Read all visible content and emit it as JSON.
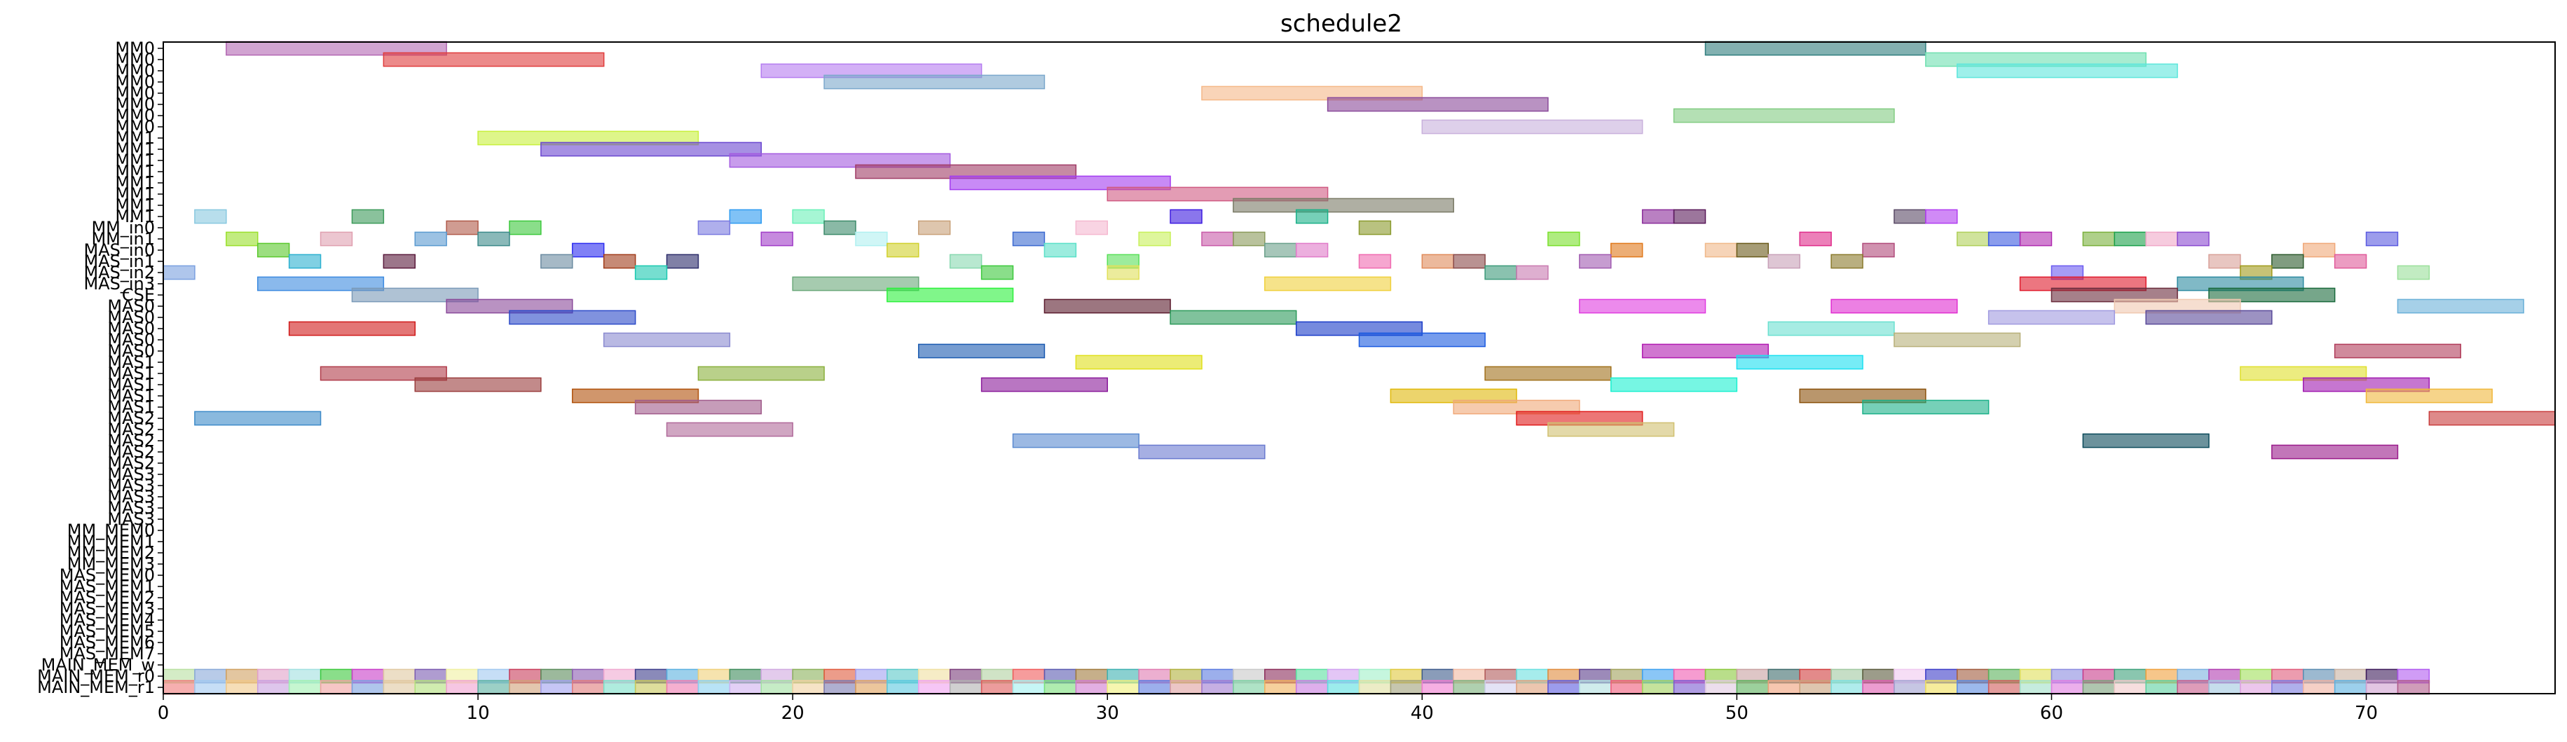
{
  "chart_data": {
    "type": "gantt",
    "title": "schedule2",
    "xlabel": "",
    "ylabel": "",
    "xlim": [
      0,
      76
    ],
    "xticks": [
      0,
      10,
      20,
      30,
      40,
      50,
      60,
      70
    ],
    "grid": false,
    "legend": "none",
    "rows": [
      "MM0",
      "MM0",
      "MM0",
      "MM0",
      "MM0",
      "MM0",
      "MM0",
      "MM0",
      "MM1",
      "MM1",
      "MM1",
      "MM1",
      "MM1",
      "MM1",
      "MM1",
      "MM1",
      "MM_in0",
      "MM_in1",
      "MAS_in0",
      "MAS_in1",
      "MAS_in2",
      "MAS_in3",
      "CSE",
      "MAS0",
      "MAS0",
      "MAS0",
      "MAS0",
      "MAS0",
      "MAS1",
      "MAS1",
      "MAS1",
      "MAS1",
      "MAS1",
      "MAS2",
      "MAS2",
      "MAS2",
      "MAS2",
      "MAS2",
      "MAS3",
      "MAS3",
      "MAS3",
      "MAS3",
      "MAS3",
      "MM_MEM0",
      "MM_MEM1",
      "MM_MEM2",
      "MM_MEM3",
      "MAS_MEM0",
      "MAS_MEM1",
      "MAS_MEM2",
      "MAS_MEM3",
      "MAS_MEM4",
      "MAS_MEM5",
      "MAS_MEM6",
      "MAS_MEM7",
      "MAIN_MEM_w",
      "MAIN_MEM_r0",
      "MAIN_MEM_r1"
    ],
    "bars": [
      {
        "row": 0,
        "start": 2,
        "end": 9,
        "color": "#b266b2"
      },
      {
        "row": 0,
        "start": 49,
        "end": 56,
        "color": "#2e7d7d"
      },
      {
        "row": 1,
        "start": 7,
        "end": 14,
        "color": "#e03c3c"
      },
      {
        "row": 1,
        "start": 56,
        "end": 63,
        "color": "#6ee0b0"
      },
      {
        "row": 2,
        "start": 19,
        "end": 26,
        "color": "#b57cf0"
      },
      {
        "row": 2,
        "start": 57,
        "end": 64,
        "color": "#5ee6dc"
      },
      {
        "row": 3,
        "start": 21,
        "end": 28,
        "color": "#7ca8cc"
      },
      {
        "row": 4,
        "start": 33,
        "end": 40,
        "color": "#f5b888"
      },
      {
        "row": 5,
        "start": 37,
        "end": 44,
        "color": "#8a4a9a"
      },
      {
        "row": 6,
        "start": 48,
        "end": 55,
        "color": "#82cc82"
      },
      {
        "row": 7,
        "start": 40,
        "end": 47,
        "color": "#c8b0dc"
      },
      {
        "row": 8,
        "start": 10,
        "end": 17,
        "color": "#c8f03c"
      },
      {
        "row": 9,
        "start": 12,
        "end": 19,
        "color": "#6a46d0"
      },
      {
        "row": 10,
        "start": 18,
        "end": 25,
        "color": "#a45ae0"
      },
      {
        "row": 11,
        "start": 22,
        "end": 29,
        "color": "#a03c66"
      },
      {
        "row": 12,
        "start": 25,
        "end": 32,
        "color": "#a43cf0"
      },
      {
        "row": 13,
        "start": 30,
        "end": 37,
        "color": "#d05a82"
      },
      {
        "row": 14,
        "start": 34,
        "end": 41,
        "color": "#7a7a66"
      },
      {
        "row": 15,
        "start": 1,
        "end": 2,
        "color": "#88c8e0"
      },
      {
        "row": 15,
        "start": 6,
        "end": 7,
        "color": "#3c9a5a"
      },
      {
        "row": 15,
        "start": 18,
        "end": 19,
        "color": "#2c9af0"
      },
      {
        "row": 15,
        "start": 20,
        "end": 21,
        "color": "#6af0b8"
      },
      {
        "row": 15,
        "start": 32,
        "end": 33,
        "color": "#3c1ae0"
      },
      {
        "row": 15,
        "start": 36,
        "end": 37,
        "color": "#1ab088"
      },
      {
        "row": 15,
        "start": 47,
        "end": 48,
        "color": "#8a2c9a"
      },
      {
        "row": 15,
        "start": 48,
        "end": 49,
        "color": "#5a1a5a"
      },
      {
        "row": 15,
        "start": 55,
        "end": 56,
        "color": "#5a4a66"
      },
      {
        "row": 15,
        "start": 56,
        "end": 57,
        "color": "#b03cf0"
      },
      {
        "row": 16,
        "start": 9,
        "end": 10,
        "color": "#b05a4a"
      },
      {
        "row": 16,
        "start": 11,
        "end": 12,
        "color": "#3cc83c"
      },
      {
        "row": 16,
        "start": 17,
        "end": 18,
        "color": "#7a7ae0"
      },
      {
        "row": 16,
        "start": 21,
        "end": 22,
        "color": "#3c8a6a"
      },
      {
        "row": 16,
        "start": 24,
        "end": 25,
        "color": "#c8a078"
      },
      {
        "row": 16,
        "start": 29,
        "end": 30,
        "color": "#f5b8d0"
      },
      {
        "row": 16,
        "start": 38,
        "end": 39,
        "color": "#8a9a2c"
      },
      {
        "row": 17,
        "start": 2,
        "end": 3,
        "color": "#9ae02c"
      },
      {
        "row": 17,
        "start": 5,
        "end": 6,
        "color": "#e0a0b0"
      },
      {
        "row": 17,
        "start": 8,
        "end": 9,
        "color": "#5a9ad0"
      },
      {
        "row": 17,
        "start": 10,
        "end": 11,
        "color": "#3c8a8a"
      },
      {
        "row": 17,
        "start": 19,
        "end": 20,
        "color": "#a03cc8"
      },
      {
        "row": 17,
        "start": 22,
        "end": 23,
        "color": "#b0f0f0"
      },
      {
        "row": 17,
        "start": 27,
        "end": 28,
        "color": "#3c6ad0"
      },
      {
        "row": 17,
        "start": 31,
        "end": 32,
        "color": "#c8f05a"
      },
      {
        "row": 17,
        "start": 33,
        "end": 34,
        "color": "#c85aa8"
      },
      {
        "row": 17,
        "start": 34,
        "end": 35,
        "color": "#8a9a5a"
      },
      {
        "row": 17,
        "start": 44,
        "end": 45,
        "color": "#7ae02c"
      },
      {
        "row": 17,
        "start": 52,
        "end": 53,
        "color": "#e02c8a"
      },
      {
        "row": 17,
        "start": 57,
        "end": 58,
        "color": "#b0d05a"
      },
      {
        "row": 17,
        "start": 58,
        "end": 59,
        "color": "#3c5ae0"
      },
      {
        "row": 17,
        "start": 59,
        "end": 60,
        "color": "#b02cb0"
      },
      {
        "row": 17,
        "start": 61,
        "end": 62,
        "color": "#7ab03c"
      },
      {
        "row": 17,
        "start": 62,
        "end": 63,
        "color": "#1aa04a"
      },
      {
        "row": 17,
        "start": 63,
        "end": 64,
        "color": "#f0a8c8"
      },
      {
        "row": 17,
        "start": 64,
        "end": 65,
        "color": "#8a4ad0"
      },
      {
        "row": 17,
        "start": 70,
        "end": 71,
        "color": "#5a5ae0"
      },
      {
        "row": 18,
        "start": 3,
        "end": 4,
        "color": "#5ac82c"
      },
      {
        "row": 18,
        "start": 13,
        "end": 14,
        "color": "#2c2cf0"
      },
      {
        "row": 18,
        "start": 23,
        "end": 24,
        "color": "#d0d02c"
      },
      {
        "row": 18,
        "start": 28,
        "end": 29,
        "color": "#5ae0c8"
      },
      {
        "row": 18,
        "start": 35,
        "end": 36,
        "color": "#6aa08a"
      },
      {
        "row": 18,
        "start": 36,
        "end": 37,
        "color": "#e07ac8"
      },
      {
        "row": 18,
        "start": 46,
        "end": 47,
        "color": "#e0781a"
      },
      {
        "row": 18,
        "start": 49,
        "end": 50,
        "color": "#f0b888"
      },
      {
        "row": 18,
        "start": 50,
        "end": 51,
        "color": "#6a5a1a"
      },
      {
        "row": 18,
        "start": 54,
        "end": 55,
        "color": "#b04a7a"
      },
      {
        "row": 18,
        "start": 68,
        "end": 69,
        "color": "#f0a878"
      },
      {
        "row": 19,
        "start": 4,
        "end": 5,
        "color": "#2cb0d0"
      },
      {
        "row": 19,
        "start": 7,
        "end": 8,
        "color": "#5a1a3c"
      },
      {
        "row": 19,
        "start": 12,
        "end": 13,
        "color": "#6a8aa0"
      },
      {
        "row": 19,
        "start": 14,
        "end": 15,
        "color": "#a03c1a"
      },
      {
        "row": 19,
        "start": 16,
        "end": 17,
        "color": "#2c2c6a"
      },
      {
        "row": 19,
        "start": 25,
        "end": 26,
        "color": "#88d8b0"
      },
      {
        "row": 19,
        "start": 30,
        "end": 31,
        "color": "#5ae05a"
      },
      {
        "row": 19,
        "start": 38,
        "end": 39,
        "color": "#f06ab0"
      },
      {
        "row": 19,
        "start": 40,
        "end": 41,
        "color": "#e08a5a"
      },
      {
        "row": 19,
        "start": 41,
        "end": 42,
        "color": "#8a4a4a"
      },
      {
        "row": 19,
        "start": 45,
        "end": 46,
        "color": "#a05ab0"
      },
      {
        "row": 19,
        "start": 51,
        "end": 52,
        "color": "#c8a0b8"
      },
      {
        "row": 19,
        "start": 53,
        "end": 54,
        "color": "#8a7a2c"
      },
      {
        "row": 19,
        "start": 65,
        "end": 66,
        "color": "#d8a098"
      },
      {
        "row": 19,
        "start": 67,
        "end": 68,
        "color": "#2c5a2c"
      },
      {
        "row": 19,
        "start": 69,
        "end": 70,
        "color": "#e05a9a"
      },
      {
        "row": 20,
        "start": 0,
        "end": 1,
        "color": "#7aa0e0"
      },
      {
        "row": 20,
        "start": 15,
        "end": 16,
        "color": "#1ac8b0"
      },
      {
        "row": 20,
        "start": 26,
        "end": 27,
        "color": "#3cc83c"
      },
      {
        "row": 20,
        "start": 30,
        "end": 31,
        "color": "#e0e05a"
      },
      {
        "row": 20,
        "start": 42,
        "end": 43,
        "color": "#3c9a7a"
      },
      {
        "row": 20,
        "start": 43,
        "end": 44,
        "color": "#c87ab0"
      },
      {
        "row": 20,
        "start": 60,
        "end": 61,
        "color": "#6a5af0"
      },
      {
        "row": 20,
        "start": 66,
        "end": 67,
        "color": "#a09a1a"
      },
      {
        "row": 20,
        "start": 71,
        "end": 72,
        "color": "#9ae09a"
      },
      {
        "row": 21,
        "start": 3,
        "end": 7,
        "color": "#3c8ae0"
      },
      {
        "row": 21,
        "start": 20,
        "end": 24,
        "color": "#6aa87a"
      },
      {
        "row": 21,
        "start": 35,
        "end": 39,
        "color": "#f0d03c"
      },
      {
        "row": 21,
        "start": 59,
        "end": 63,
        "color": "#e01a2c"
      },
      {
        "row": 21,
        "start": 64,
        "end": 68,
        "color": "#2c8aa0"
      },
      {
        "row": 22,
        "start": 6,
        "end": 10,
        "color": "#7a9ab8"
      },
      {
        "row": 22,
        "start": 23,
        "end": 27,
        "color": "#2cf03c"
      },
      {
        "row": 22,
        "start": 60,
        "end": 64,
        "color": "#6a2c3c"
      },
      {
        "row": 22,
        "start": 65,
        "end": 69,
        "color": "#1a6a3c"
      },
      {
        "row": 23,
        "start": 9,
        "end": 13,
        "color": "#8a4a9a"
      },
      {
        "row": 23,
        "start": 28,
        "end": 32,
        "color": "#5a1a2c"
      },
      {
        "row": 23,
        "start": 45,
        "end": 49,
        "color": "#e03ce0"
      },
      {
        "row": 23,
        "start": 53,
        "end": 57,
        "color": "#e02cd0"
      },
      {
        "row": 23,
        "start": 62,
        "end": 66,
        "color": "#f0c8b0"
      },
      {
        "row": 23,
        "start": 71,
        "end": 75,
        "color": "#6ab0d8"
      },
      {
        "row": 24,
        "start": 11,
        "end": 15,
        "color": "#2c4ac8"
      },
      {
        "row": 24,
        "start": 32,
        "end": 36,
        "color": "#2c9a5a"
      },
      {
        "row": 24,
        "start": 58,
        "end": 62,
        "color": "#a09ae0"
      },
      {
        "row": 24,
        "start": 63,
        "end": 67,
        "color": "#5a4a9a"
      },
      {
        "row": 25,
        "start": 4,
        "end": 8,
        "color": "#d01a1a"
      },
      {
        "row": 25,
        "start": 36,
        "end": 40,
        "color": "#1a3cc8"
      },
      {
        "row": 25,
        "start": 51,
        "end": 55,
        "color": "#6ae0d0"
      },
      {
        "row": 26,
        "start": 14,
        "end": 18,
        "color": "#8a8ad0"
      },
      {
        "row": 26,
        "start": 38,
        "end": 42,
        "color": "#1a5ae0"
      },
      {
        "row": 26,
        "start": 55,
        "end": 59,
        "color": "#b8b07a"
      },
      {
        "row": 27,
        "start": 24,
        "end": 28,
        "color": "#1a5ab0"
      },
      {
        "row": 27,
        "start": 47,
        "end": 51,
        "color": "#b01ab0"
      },
      {
        "row": 27,
        "start": 69,
        "end": 73,
        "color": "#b03c5a"
      },
      {
        "row": 28,
        "start": 29,
        "end": 33,
        "color": "#e0e01a"
      },
      {
        "row": 28,
        "start": 50,
        "end": 54,
        "color": "#1ae0f0"
      },
      {
        "row": 29,
        "start": 5,
        "end": 9,
        "color": "#b03c4a"
      },
      {
        "row": 29,
        "start": 17,
        "end": 21,
        "color": "#8ab03c"
      },
      {
        "row": 29,
        "start": 42,
        "end": 46,
        "color": "#a0701a"
      },
      {
        "row": 29,
        "start": 66,
        "end": 70,
        "color": "#e0e02c"
      },
      {
        "row": 30,
        "start": 8,
        "end": 12,
        "color": "#9a3c3c"
      },
      {
        "row": 30,
        "start": 26,
        "end": 30,
        "color": "#8a1a9a"
      },
      {
        "row": 30,
        "start": 46,
        "end": 50,
        "color": "#1af0d0"
      },
      {
        "row": 30,
        "start": 68,
        "end": 72,
        "color": "#a01ab0"
      },
      {
        "row": 31,
        "start": 13,
        "end": 17,
        "color": "#b0500a"
      },
      {
        "row": 31,
        "start": 39,
        "end": 43,
        "color": "#e0b80a"
      },
      {
        "row": 31,
        "start": 52,
        "end": 56,
        "color": "#8a500a"
      },
      {
        "row": 31,
        "start": 70,
        "end": 74,
        "color": "#f0b83c"
      },
      {
        "row": 32,
        "start": 15,
        "end": 19,
        "color": "#a05a8a"
      },
      {
        "row": 32,
        "start": 41,
        "end": 45,
        "color": "#f0a878"
      },
      {
        "row": 32,
        "start": 54,
        "end": 58,
        "color": "#1ab088"
      },
      {
        "row": 33,
        "start": 1,
        "end": 5,
        "color": "#3c8ac8"
      },
      {
        "row": 33,
        "start": 43,
        "end": 47,
        "color": "#e01a1a"
      },
      {
        "row": 33,
        "start": 72,
        "end": 76,
        "color": "#c83c3c"
      },
      {
        "row": 34,
        "start": 16,
        "end": 20,
        "color": "#b06a9a"
      },
      {
        "row": 34,
        "start": 44,
        "end": 48,
        "color": "#d0c070"
      },
      {
        "row": 35,
        "start": 27,
        "end": 31,
        "color": "#5a8ad0"
      },
      {
        "row": 35,
        "start": 61,
        "end": 65,
        "color": "#0a4a5a"
      },
      {
        "row": 36,
        "start": 31,
        "end": 35,
        "color": "#6a7ad0"
      },
      {
        "row": 36,
        "start": 67,
        "end": 71,
        "color": "#9a1a8a"
      }
    ],
    "mem_strips": {
      "rows": [
        55,
        56,
        57
      ],
      "starts": [
        0,
        0,
        0
      ],
      "counts": [
        0,
        72,
        72
      ],
      "colors": [
        [
          "#f0a0a0"
        ],
        [
          "#b8e0a0",
          "#88a8d8",
          "#d0a060",
          "#e0a0c8",
          "#a0e0e0",
          "#3cc83c",
          "#c83cc8",
          "#e0c8a0",
          "#7a5ab0",
          "#f0f0a0",
          "#a0c8f0",
          "#c83c5a",
          "#5a8a5a",
          "#8a5ab0",
          "#f0a8d0",
          "#3c3c8a",
          "#5ab0e0",
          "#f0d078",
          "#3c8a5a",
          "#d0a8e0",
          "#8ab05a",
          "#e05a3c",
          "#a0a0f0",
          "#5ac8c8",
          "#f0e0a0",
          "#7a3c7a",
          "#b0d0a0",
          "#f05a5a",
          "#5a5ab0",
          "#a07a3c",
          "#3cb0b0",
          "#e07ab0",
          "#b0b03c",
          "#5a7ae0",
          "#c8c8c8",
          "#8a2c5a",
          "#5ae0a0",
          "#d0a0f0",
          "#a0f0c8",
          "#e0c83c",
          "#3c5a8a",
          "#f0b8a0",
          "#b05a5a",
          "#6ae0e0",
          "#e08a3c",
          "#5a3c8a",
          "#a0a05a",
          "#3ca0f0",
          "#f05ab0",
          "#8ac83c",
          "#c8a0a0",
          "#3c6a6a",
          "#d03c3c",
          "#a0c8a0",
          "#5a5a3c",
          "#f0c8f0",
          "#3c3cc8",
          "#a05a3c",
          "#5ab05a",
          "#e0e05a",
          "#8a8ae0",
          "#c83c8a",
          "#3ca07a",
          "#f0a03c",
          "#7ab0e0",
          "#b03cb0",
          "#a0e05a",
          "#e05a7a",
          "#5a8ab0",
          "#c8b0a0",
          "#3c1a5a",
          "#b05af0"
        ],
        [
          "#f07a7a",
          "#a0c8f0",
          "#f0c888",
          "#c8a0e0",
          "#a0f0b0",
          "#f0a0a0",
          "#7aa0e0",
          "#e0c8a0",
          "#b0e07a",
          "#f0a0d0",
          "#5ab0a0",
          "#d0a078",
          "#a0a0f0",
          "#e07a7a",
          "#7ae0c8",
          "#c8c85a",
          "#f07ab0",
          "#88d0f0",
          "#d0b0f0",
          "#a0e0a0",
          "#f0d0a0",
          "#7a7ab0",
          "#e0a05a",
          "#5ac8e0",
          "#f0a0f0",
          "#b0b0b0",
          "#e05a5a",
          "#a0f0f0",
          "#7ae07a",
          "#d07ad0",
          "#f0f07a",
          "#5a7ae0",
          "#e0a0a0",
          "#a07ad0",
          "#7ad0a0",
          "#f0b05a",
          "#c87ae0",
          "#5ae0e0",
          "#e0e0a0",
          "#a0a07a",
          "#f07ad0",
          "#7ab07a",
          "#d0d0f0",
          "#e0a07a",
          "#5a5ae0",
          "#b0e0e0",
          "#f05a7a",
          "#a0d05a",
          "#7a5ad0",
          "#e0c8e0",
          "#5ab05a",
          "#f0a07a",
          "#c8a07a",
          "#7ae0e0",
          "#e05ab0",
          "#a0a0d0",
          "#f0e05a",
          "#5a8ae0",
          "#d05a5a",
          "#a0e0c8",
          "#e07ae0",
          "#7aa07a",
          "#f0c8c8",
          "#5ad0a0",
          "#c85a8a",
          "#a0c8e0",
          "#e0a0e0",
          "#7a7ae0",
          "#f0b0a0",
          "#5ab0e0",
          "#d0a0d0",
          "#b05a8a"
        ]
      ]
    }
  }
}
